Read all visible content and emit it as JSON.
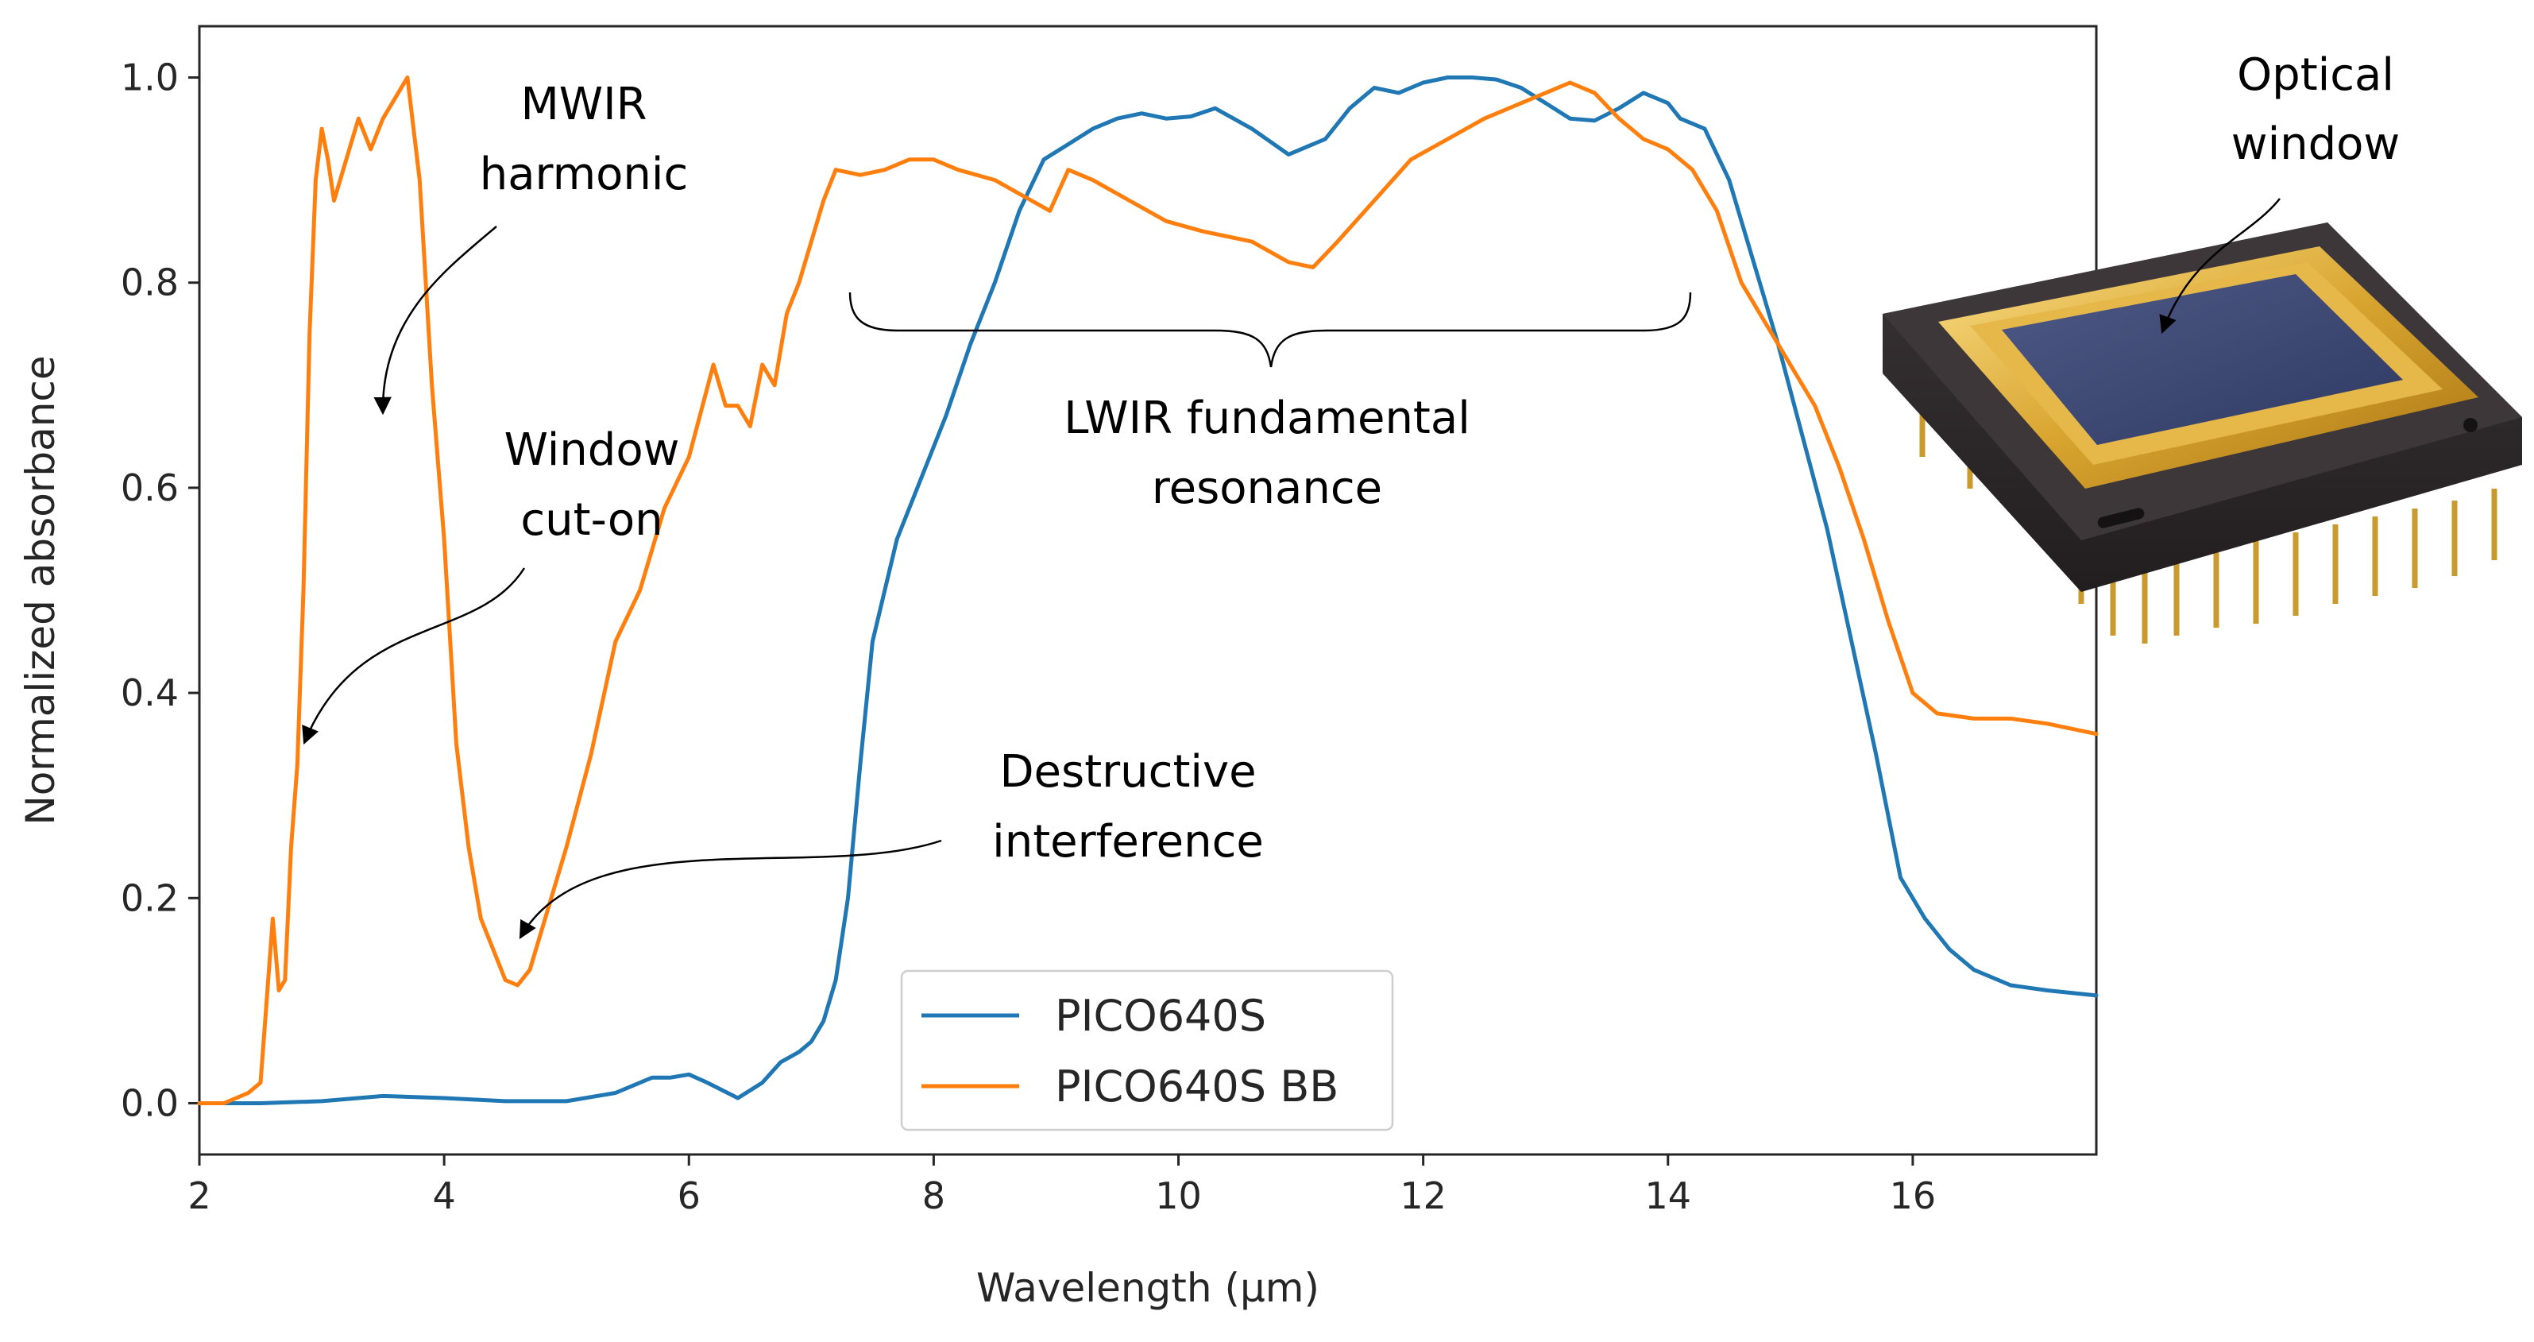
{
  "chart_data": {
    "type": "line",
    "xlabel": "Wavelength (μm)",
    "ylabel": "Normalized absorbance",
    "xlim": [
      2,
      17.5
    ],
    "ylim": [
      -0.05,
      1.05
    ],
    "xticks": [
      2,
      4,
      6,
      8,
      10,
      12,
      14,
      16
    ],
    "yticks": [
      0.0,
      0.2,
      0.4,
      0.6,
      0.8,
      1.0
    ],
    "xtick_labels": [
      "2",
      "4",
      "6",
      "8",
      "10",
      "12",
      "14",
      "16"
    ],
    "ytick_labels": [
      "0.0",
      "0.2",
      "0.4",
      "0.6",
      "0.8",
      "1.0"
    ],
    "legend_position": "bottom-center",
    "grid": false,
    "series": [
      {
        "name": "PICO640S",
        "color": "#1f77b4",
        "x": [
          2.0,
          2.5,
          3.0,
          3.5,
          4.0,
          4.5,
          5.0,
          5.4,
          5.7,
          5.85,
          6.0,
          6.15,
          6.4,
          6.6,
          6.75,
          6.9,
          7.0,
          7.1,
          7.2,
          7.3,
          7.4,
          7.5,
          7.7,
          7.9,
          8.1,
          8.3,
          8.5,
          8.7,
          8.9,
          9.1,
          9.3,
          9.5,
          9.7,
          9.9,
          10.1,
          10.3,
          10.6,
          10.9,
          11.2,
          11.4,
          11.6,
          11.8,
          12.0,
          12.2,
          12.4,
          12.6,
          12.8,
          13.0,
          13.2,
          13.4,
          13.6,
          13.8,
          14.0,
          14.1,
          14.3,
          14.5,
          14.7,
          14.9,
          15.1,
          15.3,
          15.5,
          15.7,
          15.9,
          16.1,
          16.3,
          16.5,
          16.8,
          17.1,
          17.5
        ],
        "values": [
          0.0,
          0.0,
          0.002,
          0.007,
          0.005,
          0.002,
          0.002,
          0.01,
          0.025,
          0.025,
          0.028,
          0.02,
          0.005,
          0.02,
          0.04,
          0.05,
          0.06,
          0.08,
          0.12,
          0.2,
          0.33,
          0.45,
          0.55,
          0.61,
          0.67,
          0.74,
          0.8,
          0.87,
          0.92,
          0.935,
          0.95,
          0.96,
          0.965,
          0.96,
          0.962,
          0.97,
          0.95,
          0.925,
          0.94,
          0.97,
          0.99,
          0.985,
          0.995,
          1.0,
          1.0,
          0.998,
          0.99,
          0.975,
          0.96,
          0.958,
          0.97,
          0.985,
          0.975,
          0.96,
          0.95,
          0.9,
          0.82,
          0.74,
          0.65,
          0.56,
          0.45,
          0.34,
          0.22,
          0.18,
          0.15,
          0.13,
          0.115,
          0.11,
          0.105
        ]
      },
      {
        "name": "PICO640S BB",
        "color": "#ff7f0e",
        "x": [
          2.0,
          2.2,
          2.4,
          2.5,
          2.55,
          2.6,
          2.65,
          2.7,
          2.75,
          2.8,
          2.85,
          2.9,
          2.95,
          3.0,
          3.05,
          3.1,
          3.2,
          3.3,
          3.4,
          3.5,
          3.6,
          3.7,
          3.8,
          3.9,
          4.0,
          4.1,
          4.2,
          4.3,
          4.4,
          4.5,
          4.6,
          4.7,
          4.8,
          5.0,
          5.2,
          5.4,
          5.6,
          5.8,
          6.0,
          6.2,
          6.3,
          6.4,
          6.5,
          6.6,
          6.7,
          6.8,
          6.9,
          7.0,
          7.1,
          7.2,
          7.4,
          7.6,
          7.8,
          8.0,
          8.2,
          8.5,
          8.8,
          8.95,
          9.1,
          9.3,
          9.6,
          9.9,
          10.2,
          10.6,
          10.9,
          11.1,
          11.3,
          11.6,
          11.9,
          12.2,
          12.5,
          12.8,
          13.0,
          13.2,
          13.4,
          13.6,
          13.8,
          14.0,
          14.2,
          14.4,
          14.6,
          14.8,
          15.0,
          15.2,
          15.4,
          15.6,
          15.8,
          16.0,
          16.2,
          16.5,
          16.8,
          17.1,
          17.5
        ],
        "values": [
          0.0,
          0.0,
          0.01,
          0.02,
          0.1,
          0.18,
          0.11,
          0.12,
          0.25,
          0.33,
          0.5,
          0.75,
          0.9,
          0.95,
          0.92,
          0.88,
          0.92,
          0.96,
          0.93,
          0.96,
          0.98,
          1.0,
          0.9,
          0.7,
          0.55,
          0.35,
          0.25,
          0.18,
          0.15,
          0.12,
          0.115,
          0.13,
          0.17,
          0.25,
          0.34,
          0.45,
          0.5,
          0.58,
          0.63,
          0.72,
          0.68,
          0.68,
          0.66,
          0.72,
          0.7,
          0.77,
          0.8,
          0.84,
          0.88,
          0.91,
          0.905,
          0.91,
          0.92,
          0.92,
          0.91,
          0.9,
          0.88,
          0.87,
          0.91,
          0.9,
          0.88,
          0.86,
          0.85,
          0.84,
          0.82,
          0.815,
          0.84,
          0.88,
          0.92,
          0.94,
          0.96,
          0.975,
          0.985,
          0.995,
          0.985,
          0.96,
          0.94,
          0.93,
          0.91,
          0.87,
          0.8,
          0.76,
          0.72,
          0.68,
          0.62,
          0.55,
          0.47,
          0.4,
          0.38,
          0.375,
          0.375,
          0.37,
          0.36
        ]
      }
    ],
    "annotations": [
      {
        "lines": [
          "MWIR",
          "harmonic"
        ],
        "target": [
          3.5,
          0.67
        ]
      },
      {
        "lines": [
          "Window",
          "cut-on"
        ],
        "target": [
          2.85,
          0.35
        ]
      },
      {
        "lines": [
          "Destructive",
          "interference"
        ],
        "target": [
          4.6,
          0.17
        ]
      },
      {
        "lines": [
          "LWIR fundamental",
          "resonance"
        ],
        "bracket": [
          7.3,
          14.2,
          0.79
        ]
      },
      {
        "lines": [
          "Optical",
          "window"
        ]
      }
    ]
  }
}
